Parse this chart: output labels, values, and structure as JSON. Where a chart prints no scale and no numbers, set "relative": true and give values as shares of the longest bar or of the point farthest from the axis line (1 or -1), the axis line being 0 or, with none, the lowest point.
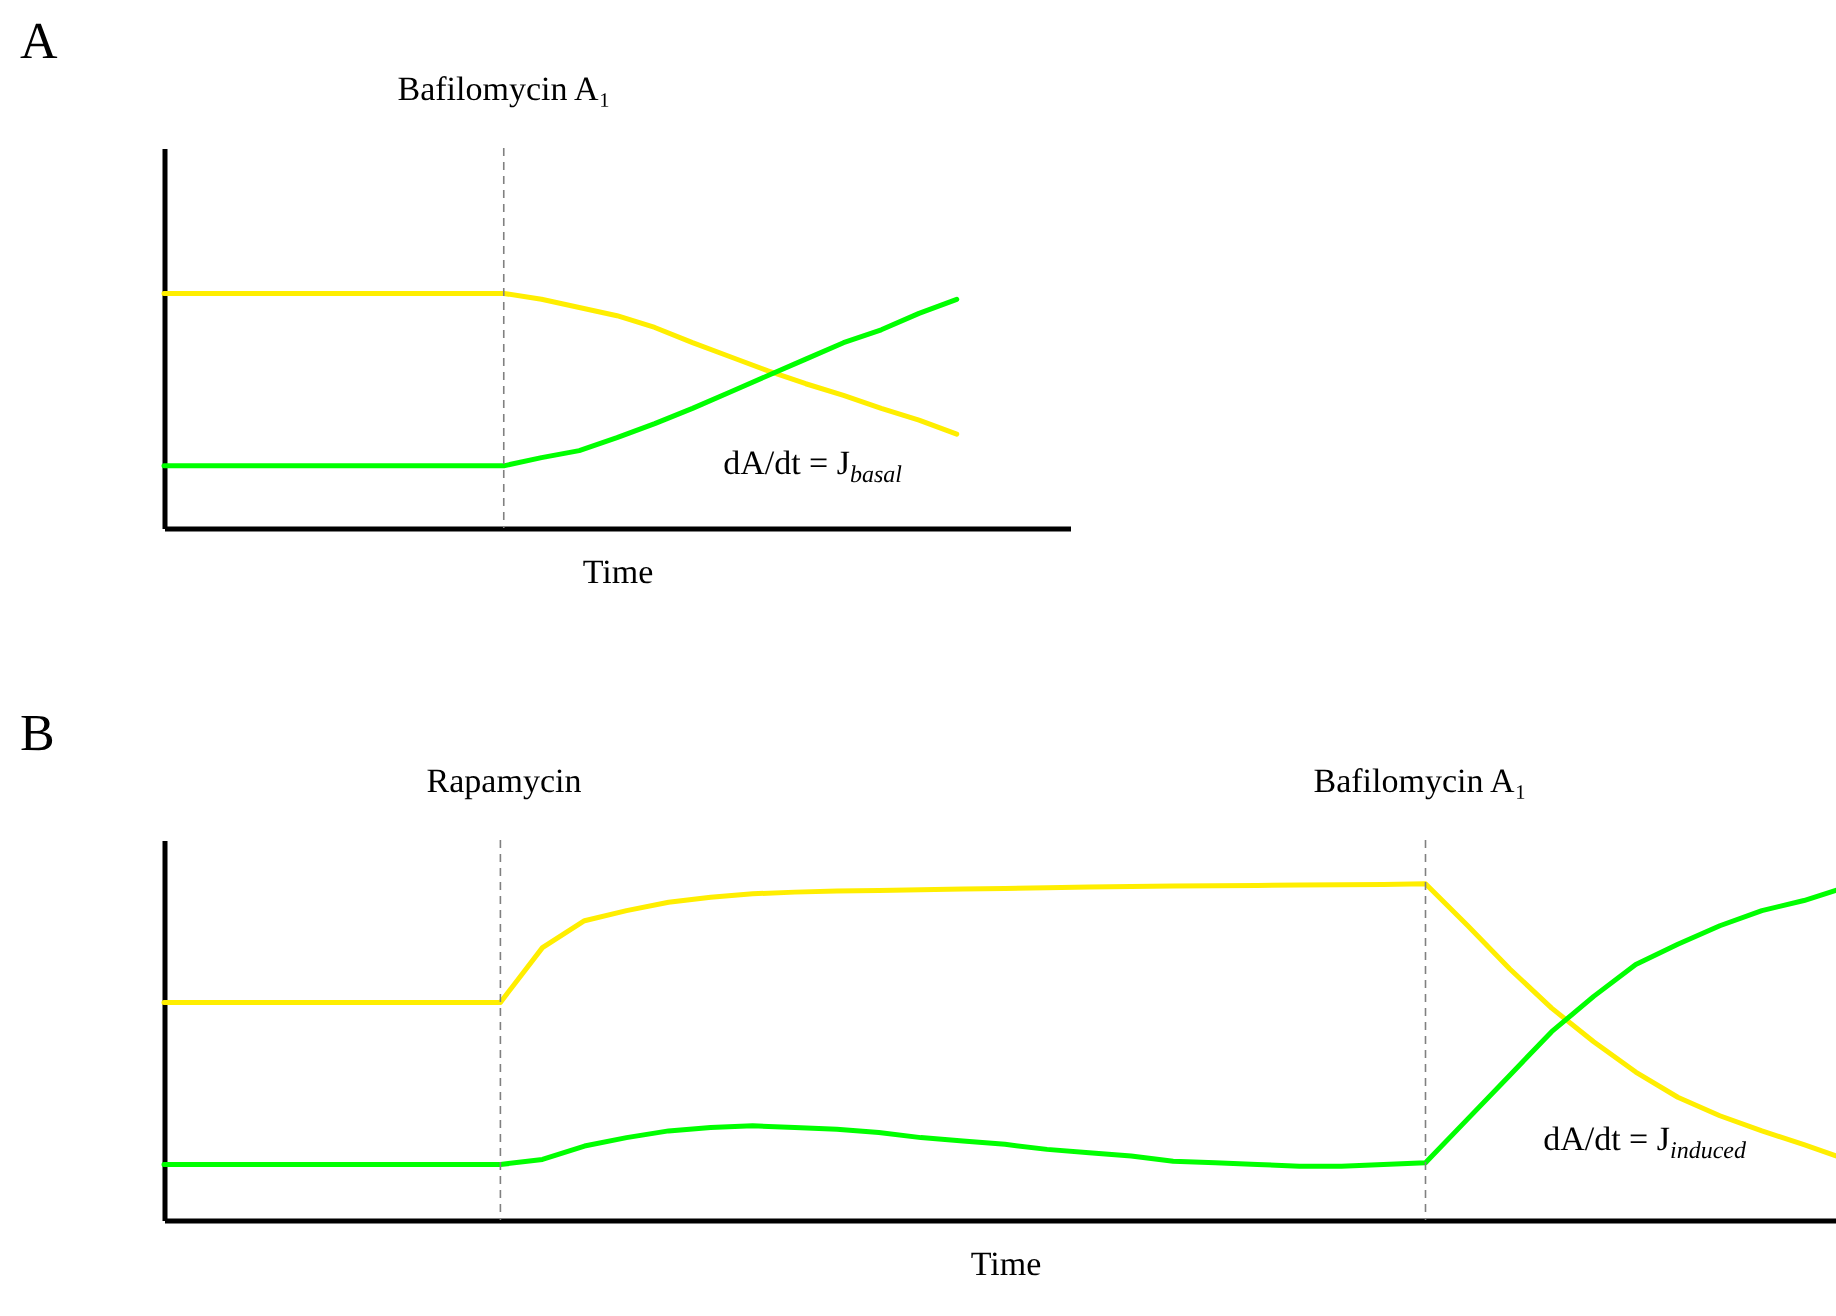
{
  "chart_data": [
    {
      "type": "line",
      "title": "A",
      "xlabel": "Time",
      "relative": true,
      "line_style": "solid",
      "categories": [
        null,
        null,
        null,
        null,
        null,
        null,
        null,
        null,
        null,
        null,
        null,
        null,
        null,
        null,
        null,
        null,
        null,
        null,
        null,
        null,
        null,
        null,
        null,
        null,
        null
      ],
      "annotations": [
        "Bafilomycin A₁",
        "dA/dt = J$_{basal}$"
      ],
      "series": [
        {
          "color": "#ffee00",
          "values": [
            1,
            1,
            1,
            1,
            1,
            1,
            1,
            1,
            1,
            1,
            0.975,
            0.94,
            0.905,
            0.855,
            0.79,
            0.73,
            0.67,
            0.615,
            0.565,
            0.51,
            0.46,
            0.4,
            null,
            null,
            null
          ]
        },
        {
          "color": "#00ff00",
          "values": [
            0.265,
            0.265,
            0.265,
            0.265,
            0.265,
            0.265,
            0.265,
            0.265,
            0.265,
            0.265,
            0.3,
            0.33,
            0.385,
            0.445,
            0.51,
            0.58,
            0.65,
            0.72,
            0.79,
            0.845,
            0.915,
            0.975,
            null,
            null,
            null
          ]
        }
      ]
    },
    {
      "type": "line",
      "title": "B",
      "xlabel": "Time",
      "relative": true,
      "line_style": "solid",
      "categories": [
        null,
        null,
        null,
        null,
        null,
        null,
        null,
        null,
        null,
        null,
        null,
        null,
        null,
        null,
        null,
        null,
        null,
        null,
        null,
        null,
        null,
        null,
        null,
        null,
        null,
        null,
        null,
        null,
        null,
        null,
        null,
        null,
        null,
        null,
        null,
        null,
        null,
        null,
        null,
        null,
        null
      ],
      "annotations": [
        "Rapamycin",
        "Bafilomycin A₁",
        "dA/dt = J$_{induced}$"
      ],
      "series": [
        {
          "color": "#ffee00",
          "values": [
            0.647,
            0.647,
            0.647,
            0.647,
            0.647,
            0.647,
            0.647,
            0.647,
            0.647,
            0.81,
            0.89,
            0.92,
            0.945,
            0.96,
            0.97,
            0.975,
            0.978,
            0.98,
            0.982,
            0.984,
            0.986,
            0.988,
            0.99,
            0.992,
            0.993,
            0.994,
            0.995,
            0.996,
            0.997,
            0.998,
            1,
            0.876,
            0.747,
            0.63,
            0.53,
            0.44,
            0.365,
            0.31,
            0.265,
            0.224,
            0.18
          ]
        },
        {
          "color": "#00ff00",
          "values": [
            0.165,
            0.165,
            0.165,
            0.165,
            0.165,
            0.165,
            0.165,
            0.165,
            0.165,
            0.18,
            0.22,
            0.245,
            0.265,
            0.275,
            0.28,
            0.275,
            0.27,
            0.26,
            0.245,
            0.235,
            0.225,
            0.21,
            0.2,
            0.19,
            0.175,
            0.17,
            0.165,
            0.16,
            0.16,
            0.165,
            0.17,
            0.3,
            0.43,
            0.56,
            0.665,
            0.76,
            0.82,
            0.875,
            0.92,
            0.95,
            0.99
          ]
        }
      ]
    }
  ]
}
